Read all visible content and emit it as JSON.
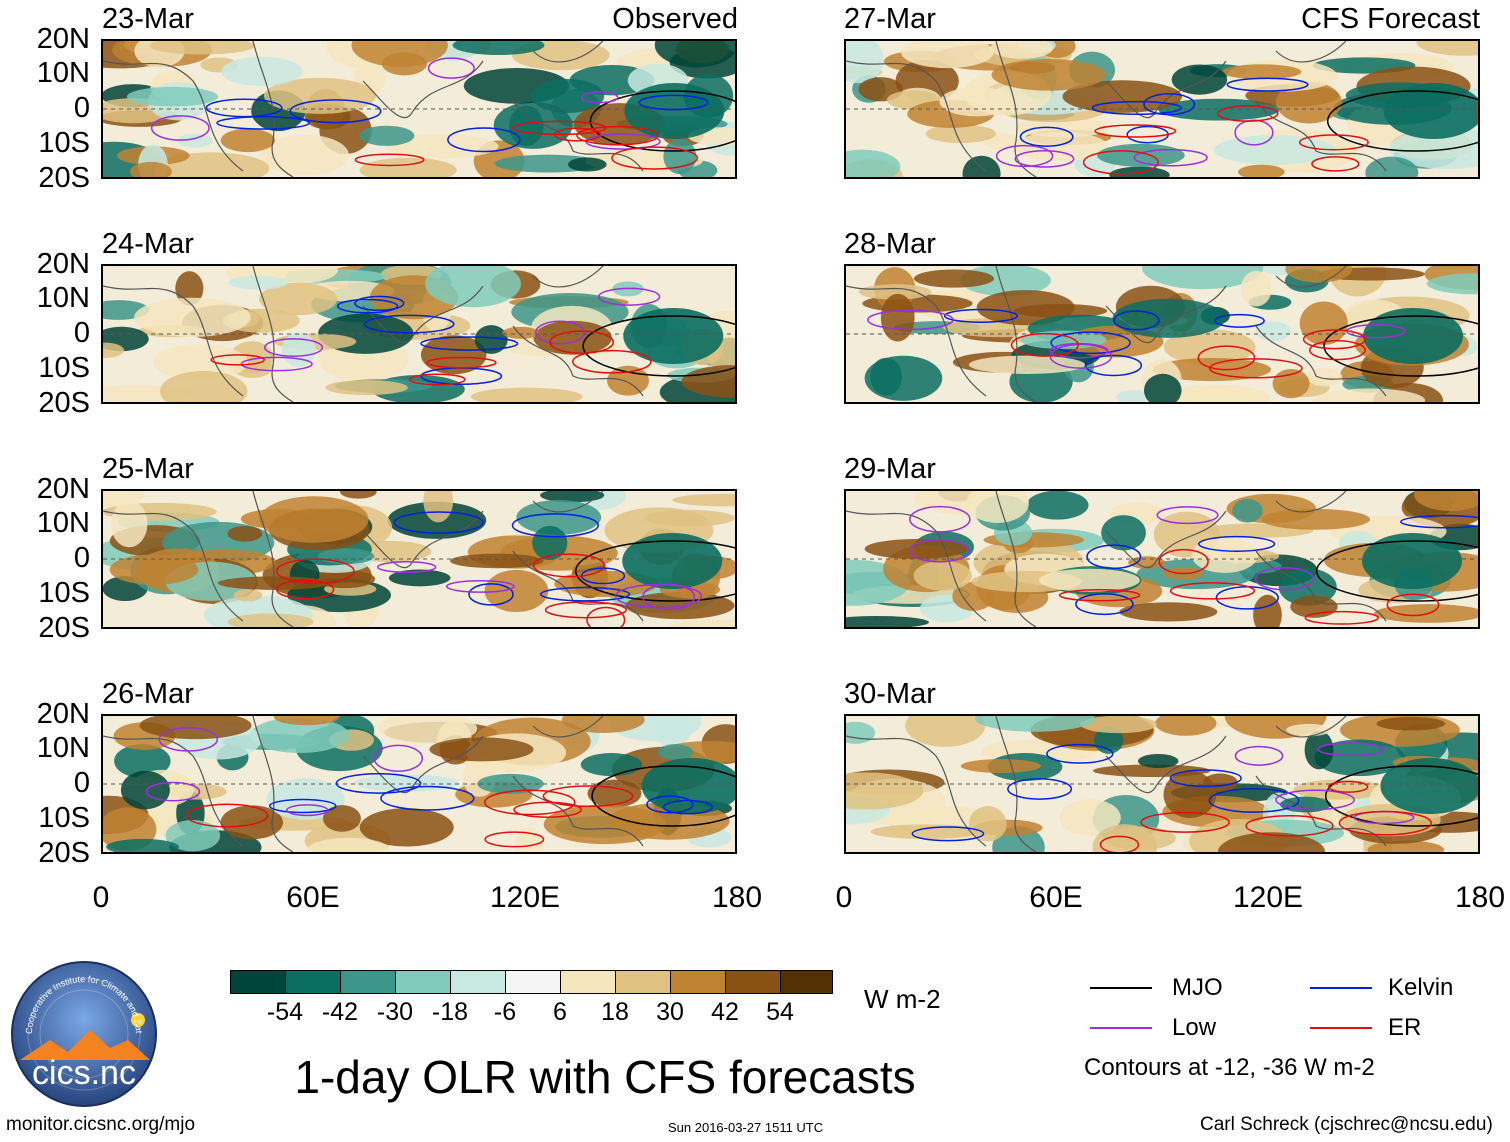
{
  "left_column_title": "Observed",
  "right_column_title": "CFS Forecast",
  "panels": [
    {
      "date": "23-Mar",
      "column": "observed",
      "seed": 3
    },
    {
      "date": "24-Mar",
      "column": "observed",
      "seed": 7
    },
    {
      "date": "25-Mar",
      "column": "observed",
      "seed": 11
    },
    {
      "date": "26-Mar",
      "column": "observed",
      "seed": 13
    },
    {
      "date": "27-Mar",
      "column": "forecast",
      "seed": 17
    },
    {
      "date": "28-Mar",
      "column": "forecast",
      "seed": 19
    },
    {
      "date": "29-Mar",
      "column": "forecast",
      "seed": 23
    },
    {
      "date": "30-Mar",
      "column": "forecast",
      "seed": 29
    }
  ],
  "lat_labels": [
    "20N",
    "10N",
    "0",
    "10S",
    "20S"
  ],
  "lon_labels": [
    "0",
    "60E",
    "120E",
    "180"
  ],
  "colorbar": {
    "colors": [
      "#00453a",
      "#0b6e61",
      "#3c978a",
      "#80cbbb",
      "#c8e9e2",
      "#f5f5f5",
      "#f5e6c0",
      "#dfc282",
      "#bf8332",
      "#8a5114",
      "#543005"
    ],
    "tick_labels": [
      "-54",
      "-42",
      "-30",
      "-18",
      "-6",
      "6",
      "18",
      "30",
      "42",
      "54"
    ],
    "units": "W m-2"
  },
  "title": "1-day OLR with CFS forecasts",
  "legend": {
    "items": [
      {
        "label": "MJO",
        "color": "#000000"
      },
      {
        "label": "Kelvin",
        "color": "#0022dd"
      },
      {
        "label": "Low",
        "color": "#9b30d9"
      },
      {
        "label": "ER",
        "color": "#e01010"
      }
    ],
    "note": "Contours at -12, -36 W m-2"
  },
  "logo": {
    "text": "cics.nc",
    "arc_text": "Cooperative Institute for Climate and Satellites"
  },
  "footer": {
    "url": "monitor.cicsnc.org/mjo",
    "timestamp": "Sun 2016-03-27 1511 UTC",
    "credit": "Carl Schreck (cjschrec@ncsu.edu)"
  }
}
